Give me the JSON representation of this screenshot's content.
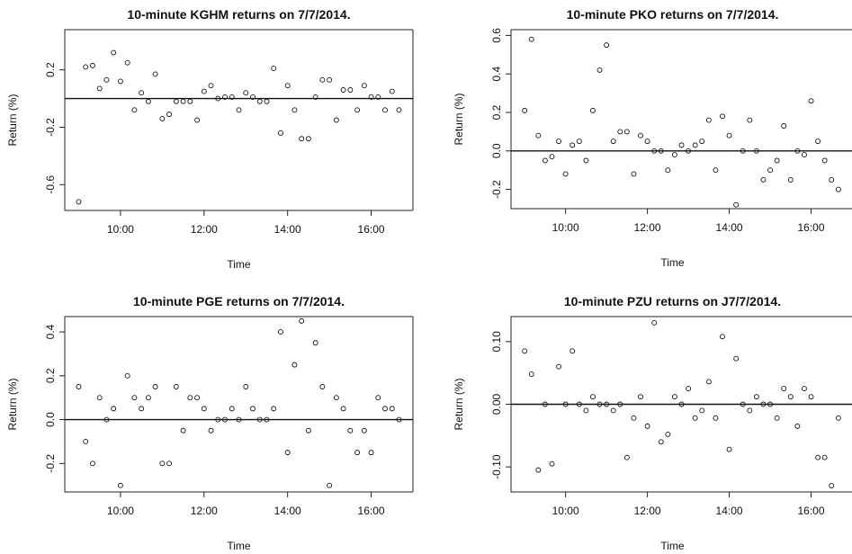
{
  "chart_data": [
    {
      "type": "scatter",
      "title": "10-minute KGHM returns on 7/7/2014.",
      "xlabel": "Time",
      "ylabel": "Return (%)",
      "x_ticks": [
        "10:00",
        "12:00",
        "14:00",
        "16:00"
      ],
      "x_tick_hours": [
        10,
        12,
        14,
        16
      ],
      "y_ticks": [
        "0.2",
        "-0.2",
        "-0.6"
      ],
      "y_tick_values": [
        0.2,
        -0.2,
        -0.6
      ],
      "xlim": [
        "08:40",
        "17:00"
      ],
      "ylim": [
        -0.78,
        0.48
      ],
      "reference_line": 0,
      "x": [
        "09:00",
        "09:10",
        "09:20",
        "09:30",
        "09:40",
        "09:50",
        "10:00",
        "10:10",
        "10:20",
        "10:30",
        "10:40",
        "10:50",
        "11:00",
        "11:10",
        "11:20",
        "11:30",
        "11:40",
        "11:50",
        "12:00",
        "12:10",
        "12:20",
        "12:30",
        "12:40",
        "12:50",
        "13:00",
        "13:10",
        "13:20",
        "13:30",
        "13:40",
        "13:50",
        "14:00",
        "14:10",
        "14:20",
        "14:30",
        "14:40",
        "14:50",
        "15:00",
        "15:10",
        "15:20",
        "15:30",
        "15:40",
        "15:50",
        "16:00",
        "16:10",
        "16:20",
        "16:30",
        "16:40"
      ],
      "y": [
        -0.72,
        0.22,
        0.23,
        0.07,
        0.13,
        0.32,
        0.12,
        0.25,
        -0.08,
        0.04,
        -0.02,
        0.17,
        -0.14,
        -0.11,
        -0.02,
        -0.02,
        -0.02,
        -0.15,
        0.05,
        0.09,
        0.0,
        0.01,
        0.01,
        -0.08,
        0.04,
        0.01,
        -0.02,
        -0.02,
        0.21,
        -0.24,
        0.09,
        -0.08,
        -0.28,
        -0.28,
        0.01,
        0.13,
        0.13,
        -0.15,
        0.06,
        0.06,
        -0.08,
        0.09,
        0.01,
        0.01,
        -0.08,
        0.05,
        -0.08
      ]
    },
    {
      "type": "scatter",
      "title": "10-minute PKO returns on 7/7/2014.",
      "xlabel": "Time",
      "ylabel": "Return (%)",
      "x_ticks": [
        "10:00",
        "12:00",
        "14:00",
        "16:00"
      ],
      "x_tick_hours": [
        10,
        12,
        14,
        16
      ],
      "y_ticks": [
        "0.6",
        "0.4",
        "0.2",
        "0.0",
        "-0.2"
      ],
      "y_tick_values": [
        0.6,
        0.4,
        0.2,
        0.0,
        -0.2
      ],
      "xlim": [
        "08:40",
        "17:00"
      ],
      "ylim": [
        -0.3,
        0.63
      ],
      "reference_line": 0,
      "x": [
        "09:00",
        "09:10",
        "09:20",
        "09:30",
        "09:40",
        "09:50",
        "10:00",
        "10:10",
        "10:20",
        "10:30",
        "10:40",
        "10:50",
        "11:00",
        "11:10",
        "11:20",
        "11:30",
        "11:40",
        "11:50",
        "12:00",
        "12:10",
        "12:20",
        "12:30",
        "12:40",
        "12:50",
        "13:00",
        "13:10",
        "13:20",
        "13:30",
        "13:40",
        "13:50",
        "14:00",
        "14:10",
        "14:20",
        "14:30",
        "14:40",
        "14:50",
        "15:00",
        "15:10",
        "15:20",
        "15:30",
        "15:40",
        "15:50",
        "16:00",
        "16:10",
        "16:20",
        "16:30",
        "16:40"
      ],
      "y": [
        0.21,
        0.58,
        0.08,
        -0.05,
        -0.03,
        0.05,
        -0.12,
        0.03,
        0.05,
        -0.05,
        0.21,
        0.42,
        0.55,
        0.05,
        0.1,
        0.1,
        -0.12,
        0.08,
        0.05,
        0.0,
        0.0,
        -0.1,
        -0.02,
        0.03,
        0.0,
        0.03,
        0.05,
        0.16,
        -0.1,
        0.18,
        0.08,
        -0.28,
        0.0,
        0.16,
        0.0,
        -0.15,
        -0.1,
        -0.05,
        0.13,
        -0.15,
        0.0,
        -0.02,
        0.26,
        0.05,
        -0.05,
        -0.15,
        -0.2
      ]
    },
    {
      "type": "scatter",
      "title": "10-minute PGE returns on 7/7/2014.",
      "xlabel": "Time",
      "ylabel": "Return (%)",
      "x_ticks": [
        "10:00",
        "12:00",
        "14:00",
        "16:00"
      ],
      "x_tick_hours": [
        10,
        12,
        14,
        16
      ],
      "y_ticks": [
        "0.4",
        "0.2",
        "0.0",
        "-0.2"
      ],
      "y_tick_values": [
        0.4,
        0.2,
        0.0,
        -0.2
      ],
      "xlim": [
        "08:40",
        "17:00"
      ],
      "ylim": [
        -0.33,
        0.47
      ],
      "reference_line": 0,
      "x": [
        "09:00",
        "09:10",
        "09:20",
        "09:30",
        "09:40",
        "09:50",
        "10:00",
        "10:10",
        "10:20",
        "10:30",
        "10:40",
        "10:50",
        "11:00",
        "11:10",
        "11:20",
        "11:30",
        "11:40",
        "11:50",
        "12:00",
        "12:10",
        "12:20",
        "12:30",
        "12:40",
        "12:50",
        "13:00",
        "13:10",
        "13:20",
        "13:30",
        "13:40",
        "13:50",
        "14:00",
        "14:10",
        "14:20",
        "14:30",
        "14:40",
        "14:50",
        "15:00",
        "15:10",
        "15:20",
        "15:30",
        "15:40",
        "15:50",
        "16:00",
        "16:10",
        "16:20",
        "16:30",
        "16:40"
      ],
      "y": [
        0.15,
        -0.1,
        -0.2,
        0.1,
        0.0,
        0.05,
        -0.3,
        0.2,
        0.1,
        0.05,
        0.1,
        0.15,
        -0.2,
        -0.2,
        0.15,
        -0.05,
        0.1,
        0.1,
        0.05,
        -0.05,
        0.0,
        0.0,
        0.05,
        0.0,
        0.15,
        0.05,
        0.0,
        0.0,
        0.05,
        0.4,
        -0.15,
        0.25,
        0.45,
        -0.05,
        0.35,
        0.15,
        -0.3,
        0.1,
        0.05,
        -0.05,
        -0.15,
        -0.05,
        -0.15,
        0.1,
        0.05,
        0.05,
        0.0
      ]
    },
    {
      "type": "scatter",
      "title": "10-minute PZU returns on J7/7/2014.",
      "xlabel": "Time",
      "ylabel": "Return (%)",
      "x_ticks": [
        "10:00",
        "12:00",
        "14:00",
        "16:00"
      ],
      "x_tick_hours": [
        10,
        12,
        14,
        16
      ],
      "y_ticks": [
        "0.10",
        "0.00",
        "-0.10"
      ],
      "y_tick_values": [
        0.1,
        0.0,
        -0.1
      ],
      "xlim": [
        "08:40",
        "17:00"
      ],
      "ylim": [
        -0.14,
        0.14
      ],
      "reference_line": 0,
      "x": [
        "09:00",
        "09:10",
        "09:20",
        "09:30",
        "09:40",
        "09:50",
        "10:00",
        "10:10",
        "10:20",
        "10:30",
        "10:40",
        "10:50",
        "11:00",
        "11:10",
        "11:20",
        "11:30",
        "11:40",
        "11:50",
        "12:00",
        "12:10",
        "12:20",
        "12:30",
        "12:40",
        "12:50",
        "13:00",
        "13:10",
        "13:20",
        "13:30",
        "13:40",
        "13:50",
        "14:00",
        "14:10",
        "14:20",
        "14:30",
        "14:40",
        "14:50",
        "15:00",
        "15:10",
        "15:20",
        "15:30",
        "15:40",
        "15:50",
        "16:00",
        "16:10",
        "16:20",
        "16:30",
        "16:40"
      ],
      "y": [
        0.085,
        0.048,
        -0.105,
        0.0,
        -0.095,
        0.06,
        0.0,
        0.085,
        0.0,
        -0.01,
        0.012,
        0.0,
        0.0,
        -0.01,
        0.0,
        -0.085,
        -0.022,
        0.012,
        -0.035,
        0.13,
        -0.06,
        -0.048,
        0.012,
        0.0,
        0.025,
        -0.022,
        -0.01,
        0.036,
        -0.022,
        0.108,
        -0.072,
        0.073,
        0.0,
        -0.01,
        0.012,
        0.0,
        0.0,
        -0.022,
        0.025,
        0.012,
        -0.035,
        0.025,
        0.012,
        -0.085,
        -0.085,
        -0.13,
        -0.022
      ]
    }
  ]
}
